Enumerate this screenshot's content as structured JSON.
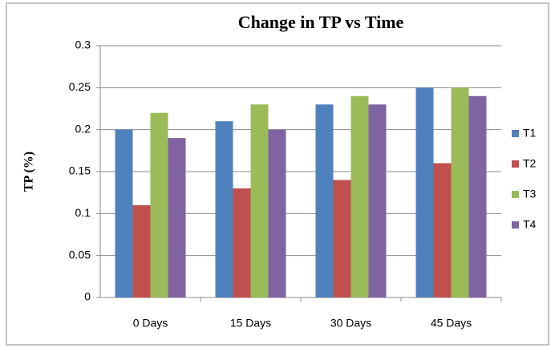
{
  "chart_data": {
    "type": "bar",
    "title": "Change in TP vs Time",
    "y_label": "TP (%)",
    "categories": [
      "0 Days",
      "15 Days",
      "30 Days",
      "45 Days"
    ],
    "series": [
      {
        "name": "T1",
        "color": "#4f81bd",
        "values": [
          0.2,
          0.21,
          0.23,
          0.25
        ]
      },
      {
        "name": "T2",
        "color": "#c0504d",
        "values": [
          0.11,
          0.13,
          0.14,
          0.16
        ]
      },
      {
        "name": "T3",
        "color": "#9bbb59",
        "values": [
          0.22,
          0.23,
          0.24,
          0.25
        ]
      },
      {
        "name": "T4",
        "color": "#8064a2",
        "values": [
          0.19,
          0.2,
          0.23,
          0.24
        ]
      }
    ],
    "ylim": [
      0,
      0.3
    ],
    "yticks": [
      0,
      0.05,
      0.1,
      0.15,
      0.2,
      0.25,
      0.3
    ],
    "grid": true,
    "legend": "right"
  }
}
